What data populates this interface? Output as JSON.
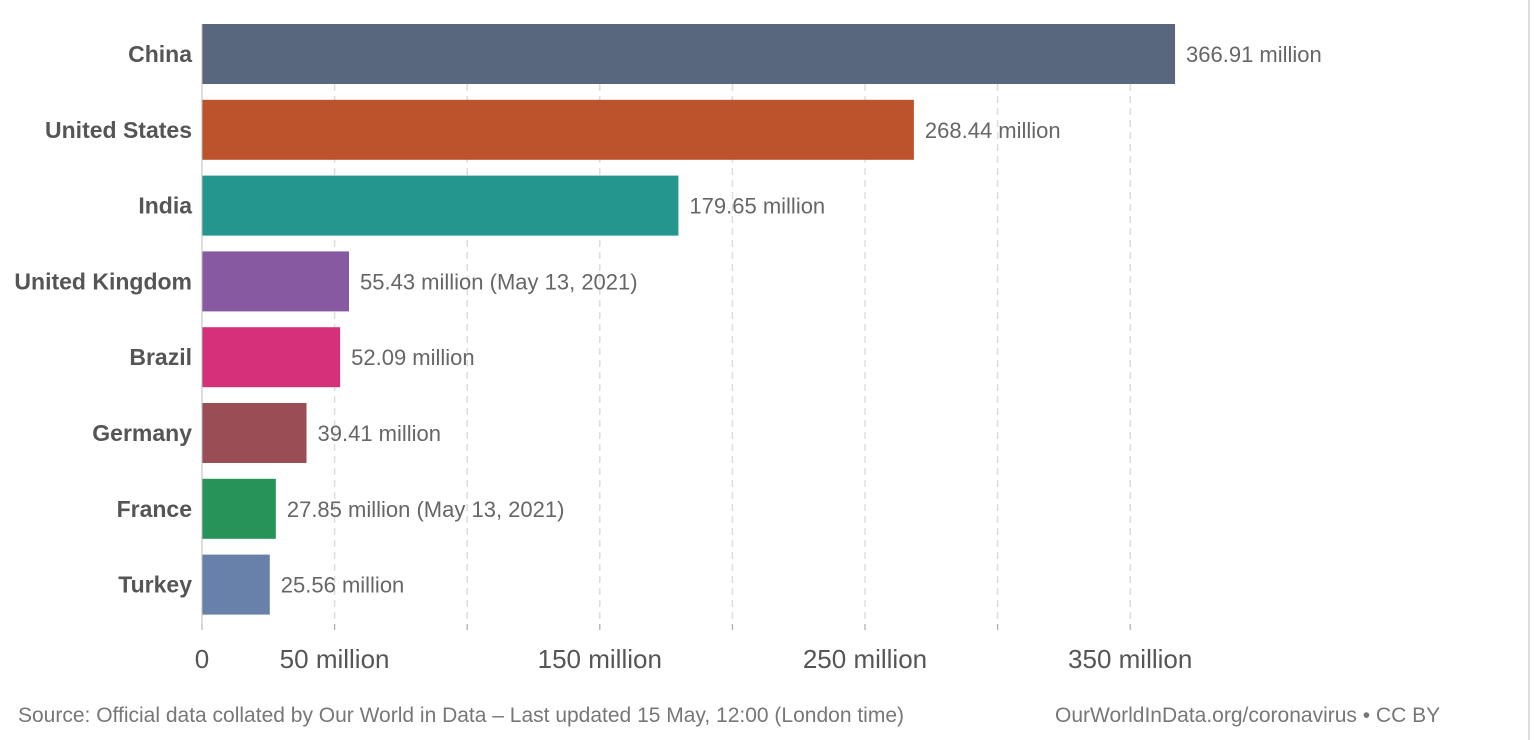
{
  "chart_data": {
    "type": "bar",
    "orientation": "horizontal",
    "categories": [
      "China",
      "United States",
      "India",
      "United Kingdom",
      "Brazil",
      "Germany",
      "France",
      "Turkey"
    ],
    "values": [
      366.91,
      268.44,
      179.65,
      55.43,
      52.09,
      39.41,
      27.85,
      25.56
    ],
    "value_labels": [
      "366.91 million",
      "268.44 million",
      "179.65 million",
      "55.43 million (May 13, 2021)",
      "52.09 million",
      "39.41 million",
      "27.85 million (May 13, 2021)",
      "25.56 million"
    ],
    "colors": [
      "#58677e",
      "#bc532d",
      "#25968d",
      "#8659a0",
      "#d5317b",
      "#9a4d55",
      "#269459",
      "#6781ab"
    ],
    "units": "million",
    "xlim": [
      0,
      400
    ],
    "gridlines": [
      50,
      100,
      150,
      200,
      250,
      300,
      350
    ],
    "x_ticks": [
      0,
      50,
      150,
      250,
      350
    ],
    "x_tick_labels": [
      "0",
      "50 million",
      "150 million",
      "250 million",
      "350 million"
    ],
    "grid": true,
    "axis_color": "#bbbbbb",
    "grid_color": "#dddddd"
  },
  "footer": {
    "source": "Source: Official data collated by Our World in Data – Last updated 15 May, 12:00 (London time)",
    "credit": "OurWorldInData.org/coronavirus • CC BY"
  }
}
